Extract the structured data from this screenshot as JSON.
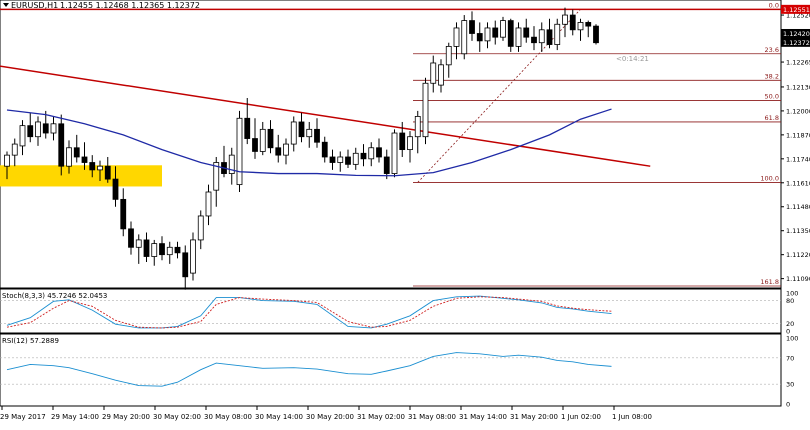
{
  "window": {
    "symbol_label": "EURUSD,H1",
    "ohlc_text": "1.12455 1.12468 1.12365 1.12372"
  },
  "colors": {
    "bull_body": "#ffffff",
    "bear_body": "#000000",
    "candle_outline": "#000000",
    "sma_line": "#1f2aa6",
    "trend_line": "#c00000",
    "resistance_line": "#c00000",
    "fib_line": "#8b1a1a",
    "support_zone": "#ffd700",
    "price_tag_red": "#d40000",
    "price_tag_black": "#000000",
    "stoch_main": "#1b8fd1",
    "stoch_signal": "#d02020",
    "rsi_line": "#1b8fd1"
  },
  "icons": {
    "symbol_dropdown": "triangle-down-icon"
  },
  "price_axis": {
    "ticks": [
      "1.12520",
      "1.12265",
      "1.12130",
      "1.12000",
      "1.11870",
      "1.11740",
      "1.11610",
      "1.11480",
      "1.11350",
      "1.11220",
      "1.11090"
    ],
    "tag_current": "1.12372",
    "tag_red": "1.12551",
    "tag_black_partial": "1.12420"
  },
  "timer_label": "<0:14:21",
  "fibonacci": {
    "levels": [
      "0.0",
      "23.6",
      "38.2",
      "50.0",
      "61.8",
      "100.0",
      "161.8"
    ]
  },
  "stochastic": {
    "label": "Stoch(8,3,3) 45.7246 52.0453",
    "axis": [
      "100",
      "80",
      "20",
      "0"
    ]
  },
  "rsi": {
    "label": "RSI(12) 57.2889",
    "axis": [
      "100",
      "70",
      "30",
      "0"
    ]
  },
  "time_axis": [
    "29 May 2017",
    "29 May 14:00",
    "29 May 20:00",
    "30 May 02:00",
    "30 May 08:00",
    "30 May 14:00",
    "30 May 20:00",
    "31 May 02:00",
    "31 May 08:00",
    "31 May 14:00",
    "31 May 20:00",
    "1 Jun 02:00",
    "1 Jun 08:00"
  ],
  "chart_data": {
    "type": "candlestick",
    "timeframe": "H1",
    "ylim": [
      1.1105,
      1.1258
    ],
    "candles": [
      {
        "o": 1.117,
        "h": 1.1178,
        "l": 1.1163,
        "c": 1.1176
      },
      {
        "o": 1.1176,
        "h": 1.1185,
        "l": 1.117,
        "c": 1.1182
      },
      {
        "o": 1.1181,
        "h": 1.1195,
        "l": 1.1176,
        "c": 1.1192
      },
      {
        "o": 1.1192,
        "h": 1.1199,
        "l": 1.1183,
        "c": 1.1186
      },
      {
        "o": 1.1186,
        "h": 1.1197,
        "l": 1.1181,
        "c": 1.1194
      },
      {
        "o": 1.1193,
        "h": 1.12,
        "l": 1.1185,
        "c": 1.1188
      },
      {
        "o": 1.1188,
        "h": 1.1197,
        "l": 1.1184,
        "c": 1.1193
      },
      {
        "o": 1.1193,
        "h": 1.1198,
        "l": 1.1165,
        "c": 1.117
      },
      {
        "o": 1.117,
        "h": 1.1184,
        "l": 1.1166,
        "c": 1.118
      },
      {
        "o": 1.118,
        "h": 1.1187,
        "l": 1.1172,
        "c": 1.1175
      },
      {
        "o": 1.1175,
        "h": 1.1183,
        "l": 1.1168,
        "c": 1.1172
      },
      {
        "o": 1.1172,
        "h": 1.1176,
        "l": 1.1164,
        "c": 1.1168
      },
      {
        "o": 1.1168,
        "h": 1.1173,
        "l": 1.1162,
        "c": 1.117
      },
      {
        "o": 1.117,
        "h": 1.1175,
        "l": 1.1161,
        "c": 1.1163
      },
      {
        "o": 1.1163,
        "h": 1.117,
        "l": 1.1148,
        "c": 1.1152
      },
      {
        "o": 1.1152,
        "h": 1.1158,
        "l": 1.1132,
        "c": 1.1136
      },
      {
        "o": 1.1136,
        "h": 1.114,
        "l": 1.1122,
        "c": 1.1126
      },
      {
        "o": 1.1126,
        "h": 1.1133,
        "l": 1.1117,
        "c": 1.113
      },
      {
        "o": 1.113,
        "h": 1.1134,
        "l": 1.1118,
        "c": 1.1121
      },
      {
        "o": 1.1121,
        "h": 1.113,
        "l": 1.1116,
        "c": 1.1128
      },
      {
        "o": 1.1128,
        "h": 1.1132,
        "l": 1.1119,
        "c": 1.1122
      },
      {
        "o": 1.1122,
        "h": 1.1129,
        "l": 1.1117,
        "c": 1.1126
      },
      {
        "o": 1.1126,
        "h": 1.1129,
        "l": 1.112,
        "c": 1.1123
      },
      {
        "o": 1.1123,
        "h": 1.1127,
        "l": 1.1103,
        "c": 1.111
      },
      {
        "o": 1.1112,
        "h": 1.1134,
        "l": 1.1108,
        "c": 1.113
      },
      {
        "o": 1.113,
        "h": 1.1146,
        "l": 1.1125,
        "c": 1.1143
      },
      {
        "o": 1.1143,
        "h": 1.116,
        "l": 1.1138,
        "c": 1.1156
      },
      {
        "o": 1.1157,
        "h": 1.1175,
        "l": 1.1148,
        "c": 1.1172
      },
      {
        "o": 1.1172,
        "h": 1.1181,
        "l": 1.1164,
        "c": 1.1166
      },
      {
        "o": 1.1166,
        "h": 1.118,
        "l": 1.116,
        "c": 1.1176
      },
      {
        "o": 1.116,
        "h": 1.12,
        "l": 1.1156,
        "c": 1.1196
      },
      {
        "o": 1.1196,
        "h": 1.1207,
        "l": 1.1182,
        "c": 1.1185
      },
      {
        "o": 1.1185,
        "h": 1.1196,
        "l": 1.1174,
        "c": 1.1178
      },
      {
        "o": 1.1178,
        "h": 1.1194,
        "l": 1.1176,
        "c": 1.119
      },
      {
        "o": 1.119,
        "h": 1.1195,
        "l": 1.1177,
        "c": 1.118
      },
      {
        "o": 1.118,
        "h": 1.1187,
        "l": 1.1172,
        "c": 1.1176
      },
      {
        "o": 1.1176,
        "h": 1.1185,
        "l": 1.1171,
        "c": 1.1182
      },
      {
        "o": 1.1182,
        "h": 1.1197,
        "l": 1.1178,
        "c": 1.1194
      },
      {
        "o": 1.1194,
        "h": 1.1199,
        "l": 1.1183,
        "c": 1.1186
      },
      {
        "o": 1.1186,
        "h": 1.1194,
        "l": 1.118,
        "c": 1.119
      },
      {
        "o": 1.119,
        "h": 1.1196,
        "l": 1.118,
        "c": 1.1183
      },
      {
        "o": 1.1183,
        "h": 1.1186,
        "l": 1.1172,
        "c": 1.1175
      },
      {
        "o": 1.1175,
        "h": 1.1179,
        "l": 1.1168,
        "c": 1.1172
      },
      {
        "o": 1.1172,
        "h": 1.1178,
        "l": 1.1167,
        "c": 1.1175
      },
      {
        "o": 1.1175,
        "h": 1.1179,
        "l": 1.1169,
        "c": 1.1171
      },
      {
        "o": 1.1171,
        "h": 1.118,
        "l": 1.1168,
        "c": 1.1177
      },
      {
        "o": 1.1177,
        "h": 1.1182,
        "l": 1.117,
        "c": 1.1174
      },
      {
        "o": 1.1174,
        "h": 1.1183,
        "l": 1.117,
        "c": 1.118
      },
      {
        "o": 1.118,
        "h": 1.1185,
        "l": 1.1172,
        "c": 1.1175
      },
      {
        "o": 1.1175,
        "h": 1.1179,
        "l": 1.1163,
        "c": 1.1166
      },
      {
        "o": 1.1166,
        "h": 1.119,
        "l": 1.1164,
        "c": 1.1188
      },
      {
        "o": 1.1188,
        "h": 1.1194,
        "l": 1.1175,
        "c": 1.1179
      },
      {
        "o": 1.1179,
        "h": 1.1189,
        "l": 1.1172,
        "c": 1.1186
      },
      {
        "o": 1.1186,
        "h": 1.12,
        "l": 1.1177,
        "c": 1.1197
      },
      {
        "o": 1.1186,
        "h": 1.1218,
        "l": 1.1182,
        "c": 1.1215
      },
      {
        "o": 1.1215,
        "h": 1.123,
        "l": 1.121,
        "c": 1.1226
      },
      {
        "o": 1.1214,
        "h": 1.1228,
        "l": 1.121,
        "c": 1.1225
      },
      {
        "o": 1.1225,
        "h": 1.1237,
        "l": 1.1218,
        "c": 1.1235
      },
      {
        "o": 1.1235,
        "h": 1.1248,
        "l": 1.1228,
        "c": 1.1245
      },
      {
        "o": 1.1231,
        "h": 1.1252,
        "l": 1.1228,
        "c": 1.1249
      },
      {
        "o": 1.1249,
        "h": 1.1254,
        "l": 1.1238,
        "c": 1.1242
      },
      {
        "o": 1.1242,
        "h": 1.1248,
        "l": 1.1232,
        "c": 1.1238
      },
      {
        "o": 1.1238,
        "h": 1.1248,
        "l": 1.1234,
        "c": 1.1245
      },
      {
        "o": 1.1245,
        "h": 1.1249,
        "l": 1.1236,
        "c": 1.124
      },
      {
        "o": 1.124,
        "h": 1.1251,
        "l": 1.1238,
        "c": 1.1249
      },
      {
        "o": 1.1249,
        "h": 1.125,
        "l": 1.1232,
        "c": 1.1235
      },
      {
        "o": 1.1235,
        "h": 1.1248,
        "l": 1.1232,
        "c": 1.1245
      },
      {
        "o": 1.1245,
        "h": 1.125,
        "l": 1.1237,
        "c": 1.124
      },
      {
        "o": 1.124,
        "h": 1.1246,
        "l": 1.1233,
        "c": 1.1237
      },
      {
        "o": 1.1237,
        "h": 1.1248,
        "l": 1.1232,
        "c": 1.1244
      },
      {
        "o": 1.1244,
        "h": 1.125,
        "l": 1.1234,
        "c": 1.1236
      },
      {
        "o": 1.1236,
        "h": 1.125,
        "l": 1.1233,
        "c": 1.1247
      },
      {
        "o": 1.1247,
        "h": 1.1256,
        "l": 1.124,
        "c": 1.1252
      },
      {
        "o": 1.1252,
        "h": 1.1255,
        "l": 1.1241,
        "c": 1.1244
      },
      {
        "o": 1.1244,
        "h": 1.125,
        "l": 1.1238,
        "c": 1.1248
      },
      {
        "o": 1.1248,
        "h": 1.1249,
        "l": 1.124,
        "c": 1.1246
      },
      {
        "o": 1.1246,
        "h": 1.1247,
        "l": 1.1236,
        "c": 1.1237
      }
    ],
    "moving_average": [
      [
        0,
        1.12005
      ],
      [
        5,
        1.1198
      ],
      [
        10,
        1.1193
      ],
      [
        15,
        1.1187
      ],
      [
        20,
        1.1179
      ],
      [
        25,
        1.1172
      ],
      [
        30,
        1.1167
      ],
      [
        35,
        1.1166
      ],
      [
        40,
        1.1166
      ],
      [
        45,
        1.1165
      ],
      [
        50,
        1.11648
      ],
      [
        55,
        1.11665
      ],
      [
        60,
        1.1172
      ],
      [
        65,
        1.1179
      ],
      [
        70,
        1.1187
      ],
      [
        74,
        1.11955
      ],
      [
        78,
        1.1201
      ]
    ],
    "fibonacci_levels": [
      {
        "ratio": "0.0",
        "price": 1.12551
      },
      {
        "ratio": "23.6",
        "price": 1.1231
      },
      {
        "ratio": "38.2",
        "price": 1.12166
      },
      {
        "ratio": "50.0",
        "price": 1.12056
      },
      {
        "ratio": "61.8",
        "price": 1.1194
      },
      {
        "ratio": "100.0",
        "price": 1.11612
      },
      {
        "ratio": "161.8",
        "price": 1.1105
      }
    ],
    "resistance_price": 1.12551,
    "trendline": {
      "from": [
        -2,
        1.1225
      ],
      "to": [
        83,
        1.117
      ]
    },
    "support_zone": {
      "x_from": -2,
      "x_to": 20,
      "price_top": 1.11705,
      "price_bottom": 1.1159
    },
    "stochastic": {
      "ylim": [
        0,
        100
      ],
      "main": [
        [
          0,
          15
        ],
        [
          3,
          35
        ],
        [
          6,
          78
        ],
        [
          8,
          82
        ],
        [
          11,
          55
        ],
        [
          14,
          18
        ],
        [
          17,
          8
        ],
        [
          20,
          8
        ],
        [
          22,
          12
        ],
        [
          25,
          40
        ],
        [
          27,
          88
        ],
        [
          30,
          88
        ],
        [
          33,
          80
        ],
        [
          37,
          78
        ],
        [
          40,
          70
        ],
        [
          44,
          12
        ],
        [
          47,
          8
        ],
        [
          49,
          18
        ],
        [
          52,
          40
        ],
        [
          55,
          80
        ],
        [
          58,
          90
        ],
        [
          61,
          92
        ],
        [
          64,
          86
        ],
        [
          66,
          82
        ],
        [
          69,
          74
        ],
        [
          71,
          62
        ],
        [
          73,
          58
        ],
        [
          75,
          52
        ],
        [
          78,
          46
        ]
      ],
      "signal": [
        [
          0,
          10
        ],
        [
          3,
          22
        ],
        [
          6,
          60
        ],
        [
          8,
          80
        ],
        [
          11,
          65
        ],
        [
          14,
          28
        ],
        [
          17,
          10
        ],
        [
          20,
          8
        ],
        [
          22,
          10
        ],
        [
          25,
          25
        ],
        [
          27,
          70
        ],
        [
          30,
          88
        ],
        [
          33,
          84
        ],
        [
          37,
          80
        ],
        [
          40,
          75
        ],
        [
          44,
          25
        ],
        [
          47,
          10
        ],
        [
          49,
          12
        ],
        [
          52,
          28
        ],
        [
          55,
          65
        ],
        [
          58,
          86
        ],
        [
          61,
          90
        ],
        [
          64,
          88
        ],
        [
          66,
          84
        ],
        [
          69,
          78
        ],
        [
          71,
          66
        ],
        [
          73,
          60
        ],
        [
          75,
          56
        ],
        [
          78,
          52
        ]
      ]
    },
    "rsi": {
      "ylim": [
        0,
        100
      ],
      "values": [
        [
          0,
          52
        ],
        [
          3,
          60
        ],
        [
          6,
          58
        ],
        [
          8,
          55
        ],
        [
          11,
          46
        ],
        [
          14,
          36
        ],
        [
          17,
          28
        ],
        [
          20,
          27
        ],
        [
          22,
          33
        ],
        [
          25,
          52
        ],
        [
          27,
          62
        ],
        [
          30,
          58
        ],
        [
          33,
          54
        ],
        [
          37,
          55
        ],
        [
          40,
          53
        ],
        [
          44,
          46
        ],
        [
          47,
          45
        ],
        [
          49,
          50
        ],
        [
          52,
          58
        ],
        [
          55,
          72
        ],
        [
          58,
          78
        ],
        [
          61,
          76
        ],
        [
          64,
          72
        ],
        [
          66,
          74
        ],
        [
          69,
          71
        ],
        [
          71,
          66
        ],
        [
          73,
          64
        ],
        [
          75,
          60
        ],
        [
          78,
          57
        ]
      ]
    }
  }
}
